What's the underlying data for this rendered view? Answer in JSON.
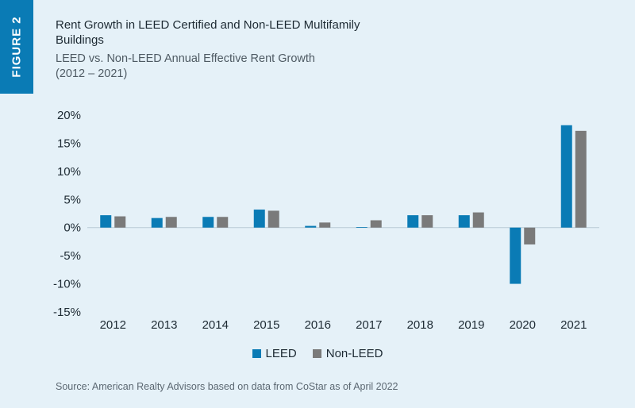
{
  "figure_label": "FIGURE 2",
  "title": "Rent Growth in LEED Certified and Non-LEED Multifamily Buildings",
  "subtitle": "LEED vs. Non-LEED Annual Effective Rent Growth (2012 – 2021)",
  "source": "Source: American Realty Advisors based on data from CoStar as of April 2022",
  "colors": {
    "leed": "#0a7bb5",
    "non_leed": "#7a7a7a",
    "accent": "#0a7bb5"
  },
  "chart_data": {
    "type": "bar",
    "title": "Rent Growth in LEED Certified and Non-LEED Multifamily Buildings",
    "subtitle": "LEED vs. Non-LEED Annual Effective Rent Growth (2012 – 2021)",
    "xlabel": "",
    "ylabel": "",
    "categories": [
      "2012",
      "2013",
      "2014",
      "2015",
      "2016",
      "2017",
      "2018",
      "2019",
      "2020",
      "2021"
    ],
    "series": [
      {
        "name": "LEED",
        "color": "#0a7bb5",
        "values": [
          2.2,
          1.7,
          1.9,
          3.2,
          0.3,
          0.1,
          2.2,
          2.2,
          -10.0,
          18.2
        ]
      },
      {
        "name": "Non-LEED",
        "color": "#7a7a7a",
        "values": [
          2.0,
          1.9,
          1.9,
          3.0,
          0.9,
          1.3,
          2.2,
          2.7,
          -3.0,
          17.2
        ]
      }
    ],
    "ylim": [
      -15,
      20
    ],
    "yticks": [
      -15,
      -10,
      -5,
      0,
      5,
      10,
      15,
      20
    ],
    "ytick_labels": [
      "-15%",
      "-10%",
      "-5%",
      "0%",
      "5%",
      "10%",
      "15%",
      "20%"
    ],
    "grid": false,
    "legend": "bottom-center"
  }
}
